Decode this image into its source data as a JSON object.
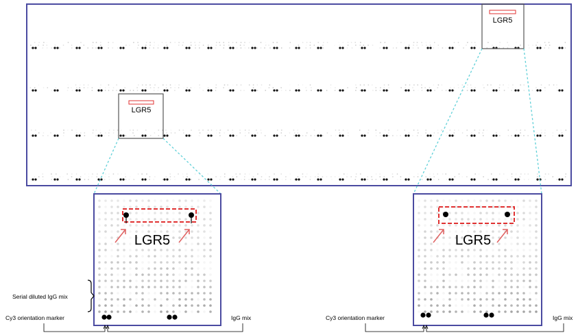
{
  "overview": {
    "box1_label": "LGR5",
    "box2_label": "LGR5"
  },
  "zoom_left": {
    "label": "LGR5",
    "serial_label": "Serial diluted IgG mix",
    "cy3_label": "Cy3 orientation marker",
    "igg_label": "IgG mix"
  },
  "zoom_right": {
    "label": "LGR5",
    "cy3_label": "Cy3 orientation marker",
    "igg_label": "IgG mix"
  },
  "colors": {
    "frame": "#4a4aa0",
    "highlight": "#e03030",
    "connector": "#5fd0d8",
    "arrow": "#e06060"
  }
}
